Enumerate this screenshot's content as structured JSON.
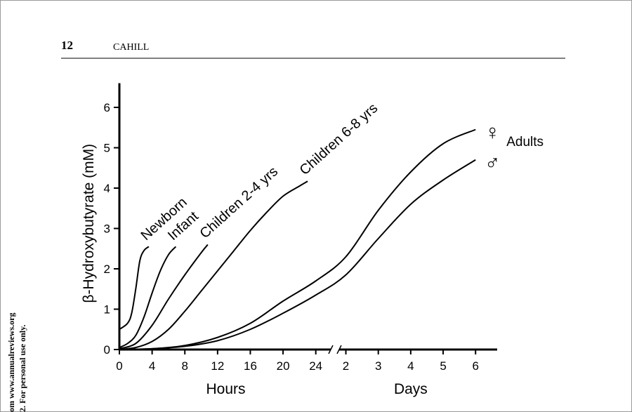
{
  "header": {
    "page_number": "12",
    "author": "CAHILL"
  },
  "side_note": [
    "om www.annualreviews.org",
    "2. For personal use only."
  ],
  "chart_data": {
    "type": "line",
    "ylabel": "β-Hydroxybutyrate (mM)",
    "xlabel": [
      "Hours",
      "Days"
    ],
    "ylim": [
      0,
      6.6
    ],
    "yticks": [
      0,
      1,
      2,
      3,
      4,
      5,
      6
    ],
    "xlim": [
      0,
      160
    ],
    "xbreak": [
      26,
      42
    ],
    "xticks": [
      0,
      4,
      8,
      12,
      16,
      20,
      24,
      {
        "value": 48,
        "label": "2"
      },
      {
        "value": 72,
        "label": "3"
      },
      {
        "value": 96,
        "label": "4"
      },
      {
        "value": 120,
        "label": "5"
      },
      {
        "value": 144,
        "label": "6"
      }
    ],
    "group_label": "Adults",
    "series": [
      {
        "name": "Newborn",
        "color": "#000000",
        "x": [
          0,
          1,
          1.5,
          2,
          2.5,
          3,
          3.6
        ],
        "y": [
          0.5,
          0.65,
          0.9,
          1.5,
          2.2,
          2.45,
          2.55
        ]
      },
      {
        "name": "Infant",
        "color": "#000000",
        "x": [
          0,
          1,
          2,
          3,
          4,
          5,
          6,
          6.9
        ],
        "y": [
          0.05,
          0.15,
          0.35,
          0.8,
          1.4,
          1.95,
          2.35,
          2.55
        ]
      },
      {
        "name": "Children 2-4 yrs",
        "color": "#000000",
        "x": [
          0,
          2,
          4,
          6,
          8,
          10,
          10.8
        ],
        "y": [
          0.02,
          0.15,
          0.6,
          1.25,
          1.85,
          2.4,
          2.6
        ]
      },
      {
        "name": "Children 6-8 yrs",
        "color": "#000000",
        "x": [
          0,
          2,
          4,
          6,
          8,
          10,
          12,
          14,
          16,
          18,
          20,
          22,
          23
        ],
        "y": [
          0,
          0.05,
          0.2,
          0.5,
          0.95,
          1.45,
          1.95,
          2.45,
          2.95,
          3.4,
          3.8,
          4.05,
          4.17
        ]
      },
      {
        "name": "♀",
        "color": "#000000",
        "x": [
          0,
          4,
          8,
          12,
          16,
          20,
          24,
          48,
          72,
          96,
          120,
          144
        ],
        "y": [
          0,
          0.02,
          0.1,
          0.3,
          0.65,
          1.2,
          1.7,
          2.3,
          3.45,
          4.4,
          5.1,
          5.45
        ]
      },
      {
        "name": "♂",
        "color": "#000000",
        "x": [
          0,
          4,
          8,
          12,
          16,
          20,
          24,
          48,
          72,
          96,
          120,
          144
        ],
        "y": [
          0,
          0.02,
          0.08,
          0.22,
          0.5,
          0.9,
          1.35,
          1.85,
          2.75,
          3.6,
          4.2,
          4.7
        ]
      }
    ]
  }
}
